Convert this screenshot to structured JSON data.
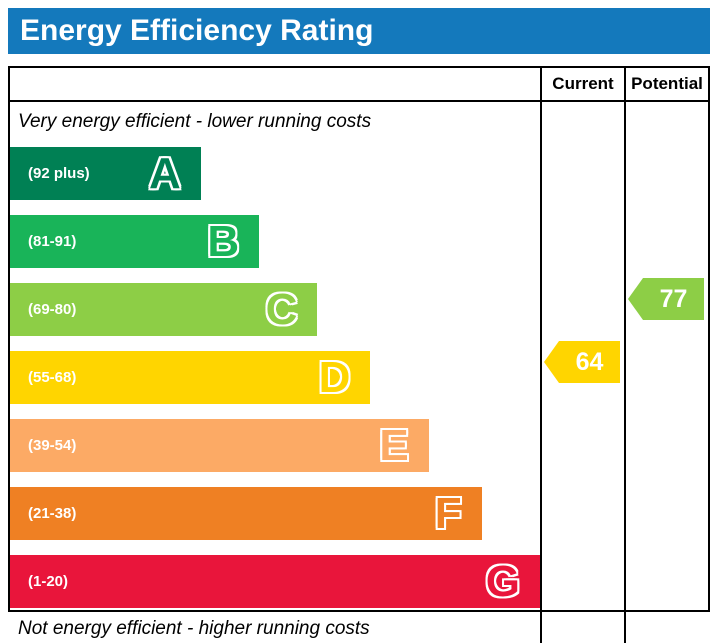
{
  "title": "Energy Efficiency Rating",
  "columns": {
    "current": "Current",
    "potential": "Potential"
  },
  "captions": {
    "top": "Very energy efficient - lower running costs",
    "bottom": "Not energy efficient - higher running costs"
  },
  "colors": {
    "title_bar": "#1479bc",
    "current_pointer": "#ffd500",
    "potential_pointer": "#8dce46",
    "border": "#000000"
  },
  "chart_data": {
    "type": "bar",
    "title": "Energy Efficiency Rating",
    "bands": [
      {
        "letter": "A",
        "range": "(92 plus)",
        "min": 92,
        "max": 100,
        "color": "#008054",
        "width_pct": 36
      },
      {
        "letter": "B",
        "range": "(81-91)",
        "min": 81,
        "max": 91,
        "color": "#19b459",
        "width_pct": 47
      },
      {
        "letter": "C",
        "range": "(69-80)",
        "min": 69,
        "max": 80,
        "color": "#8dce46",
        "width_pct": 58
      },
      {
        "letter": "D",
        "range": "(55-68)",
        "min": 55,
        "max": 68,
        "color": "#ffd500",
        "width_pct": 68
      },
      {
        "letter": "E",
        "range": "(39-54)",
        "min": 39,
        "max": 54,
        "color": "#fcaa65",
        "width_pct": 79
      },
      {
        "letter": "F",
        "range": "(21-38)",
        "min": 21,
        "max": 38,
        "color": "#ef8023",
        "width_pct": 89
      },
      {
        "letter": "G",
        "range": "(1-20)",
        "min": 1,
        "max": 20,
        "color": "#e9153b",
        "width_pct": 100
      }
    ],
    "current": {
      "value": 64,
      "band": "D"
    },
    "potential": {
      "value": 77,
      "band": "C"
    }
  }
}
